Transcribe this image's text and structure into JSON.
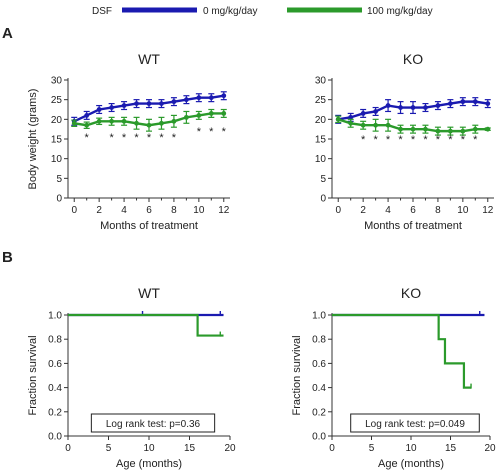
{
  "colors": {
    "series1": "#1a1ab0",
    "series2": "#2b9a2b",
    "axis": "#333333"
  },
  "legend": {
    "group_label": "DSF",
    "items": [
      {
        "label": "0 mg/kg/day",
        "color": "#1a1ab0"
      },
      {
        "label": "100 mg/kg/day",
        "color": "#2b9a2b"
      }
    ]
  },
  "panels": {
    "A": "A",
    "B": "B"
  },
  "chart_data": [
    {
      "id": "A-WT",
      "type": "line",
      "title": "WT",
      "xlabel": "Months of treatment",
      "ylabel": "Body weight (grams)",
      "xlim": [
        -0.5,
        12.5
      ],
      "ylim": [
        0,
        30
      ],
      "xticks": [
        0,
        2,
        4,
        6,
        8,
        10,
        12
      ],
      "yticks": [
        0,
        5,
        10,
        15,
        20,
        25,
        30
      ],
      "x": [
        0,
        1,
        2,
        3,
        4,
        5,
        6,
        7,
        8,
        9,
        10,
        11,
        12
      ],
      "series": [
        {
          "values": [
            19.5,
            21,
            22.5,
            23,
            23.5,
            24,
            24,
            24,
            24.5,
            25,
            25.5,
            25.5,
            26
          ],
          "errors": [
            1.0,
            1.0,
            1.0,
            1.0,
            1.0,
            1.0,
            1.0,
            1.0,
            1.0,
            1.0,
            1.0,
            1.0,
            1.0
          ],
          "color": "#1a1ab0"
        },
        {
          "values": [
            19,
            18.5,
            19.5,
            19.5,
            19.5,
            19,
            18.5,
            19,
            19.5,
            20.5,
            21,
            21.5,
            21.5
          ],
          "errors": [
            0.8,
            0.8,
            0.8,
            1.0,
            1.0,
            1.5,
            1.5,
            1.5,
            1.5,
            1.5,
            1.0,
            1.0,
            1.0
          ],
          "color": "#2b9a2b"
        }
      ],
      "annotations": [
        {
          "x": 1,
          "y": 16,
          "text": "*"
        },
        {
          "x": 3,
          "y": 16,
          "text": "*"
        },
        {
          "x": 4,
          "y": 16,
          "text": "*"
        },
        {
          "x": 5,
          "y": 16,
          "text": "*"
        },
        {
          "x": 6,
          "y": 16,
          "text": "*"
        },
        {
          "x": 7,
          "y": 16,
          "text": "*"
        },
        {
          "x": 8,
          "y": 16,
          "text": "*"
        },
        {
          "x": 10,
          "y": 17.5,
          "text": "*"
        },
        {
          "x": 11,
          "y": 17.5,
          "text": "*"
        },
        {
          "x": 12,
          "y": 17.5,
          "text": "*"
        }
      ],
      "grid": false
    },
    {
      "id": "A-KO",
      "type": "line",
      "title": "KO",
      "xlabel": "Months of treatment",
      "ylabel": "",
      "xlim": [
        -0.5,
        12.5
      ],
      "ylim": [
        0,
        30
      ],
      "xticks": [
        0,
        2,
        4,
        6,
        8,
        10,
        12
      ],
      "yticks": [
        0,
        5,
        10,
        15,
        20,
        25,
        30
      ],
      "x": [
        0,
        1,
        2,
        3,
        4,
        5,
        6,
        7,
        8,
        9,
        10,
        11,
        12
      ],
      "series": [
        {
          "values": [
            20,
            20.5,
            21.5,
            22,
            23.5,
            23,
            23,
            23,
            23.5,
            24,
            24.5,
            24.5,
            24
          ],
          "errors": [
            1.0,
            1.0,
            1.0,
            1.0,
            1.5,
            1.5,
            1.5,
            1.0,
            1.0,
            1.0,
            1.0,
            1.0,
            1.0
          ],
          "color": "#1a1ab0"
        },
        {
          "values": [
            20,
            19,
            18.5,
            18.5,
            18.5,
            17.5,
            17.5,
            17.5,
            17,
            17,
            17,
            17.5,
            17.5
          ],
          "errors": [
            0.8,
            1.0,
            1.0,
            1.5,
            1.5,
            1.0,
            1.0,
            1.0,
            1.0,
            1.0,
            1.0,
            1.0,
            0.3
          ],
          "color": "#2b9a2b"
        }
      ],
      "annotations": [
        {
          "x": 2,
          "y": 15.5,
          "text": "*"
        },
        {
          "x": 3,
          "y": 15.5,
          "text": "*"
        },
        {
          "x": 4,
          "y": 15.5,
          "text": "*"
        },
        {
          "x": 5,
          "y": 15.5,
          "text": "*"
        },
        {
          "x": 6,
          "y": 15.5,
          "text": "*"
        },
        {
          "x": 7,
          "y": 15.5,
          "text": "*"
        },
        {
          "x": 8,
          "y": 15.5,
          "text": "*"
        },
        {
          "x": 9,
          "y": 15.5,
          "text": "*"
        },
        {
          "x": 10,
          "y": 15.5,
          "text": "*"
        },
        {
          "x": 11,
          "y": 15.5,
          "text": "*"
        }
      ],
      "grid": false
    },
    {
      "id": "B-WT",
      "type": "line",
      "step": true,
      "title": "WT",
      "xlabel": "Age (months)",
      "ylabel": "Fraction survival",
      "xlim": [
        0,
        20
      ],
      "ylim": [
        0,
        1.0
      ],
      "xticks": [
        0,
        5,
        10,
        15,
        20
      ],
      "yticks": [
        0.0,
        0.2,
        0.4,
        0.6,
        0.8,
        1.0
      ],
      "series": [
        {
          "x": [
            0,
            19.2
          ],
          "values": [
            1.0,
            1.0
          ],
          "censor_x": [
            9.2,
            18.8
          ],
          "color": "#1a1ab0"
        },
        {
          "x": [
            0,
            16,
            19.2
          ],
          "values": [
            1.0,
            0.83,
            0.83
          ],
          "censor_x": [
            18.8
          ],
          "color": "#2b9a2b"
        }
      ],
      "annotation": "Log rank test: p=0.36",
      "grid": false
    },
    {
      "id": "B-KO",
      "type": "line",
      "step": true,
      "title": "KO",
      "xlabel": "Age (months)",
      "ylabel": "Fraction survival",
      "xlim": [
        0,
        20
      ],
      "ylim": [
        0,
        1.0
      ],
      "xticks": [
        0,
        5,
        10,
        15,
        20
      ],
      "yticks": [
        0.0,
        0.2,
        0.4,
        0.6,
        0.8,
        1.0
      ],
      "series": [
        {
          "x": [
            0,
            19.3
          ],
          "values": [
            1.0,
            1.0
          ],
          "censor_x": [
            18.7
          ],
          "color": "#1a1ab0"
        },
        {
          "x": [
            0,
            13.5,
            14.3,
            16.7,
            17.6
          ],
          "values": [
            1.0,
            0.8,
            0.6,
            0.4,
            0.4
          ],
          "censor_x": [
            17.6
          ],
          "color": "#2b9a2b"
        }
      ],
      "annotation": "Log rank test: p=0.049",
      "grid": false
    }
  ]
}
